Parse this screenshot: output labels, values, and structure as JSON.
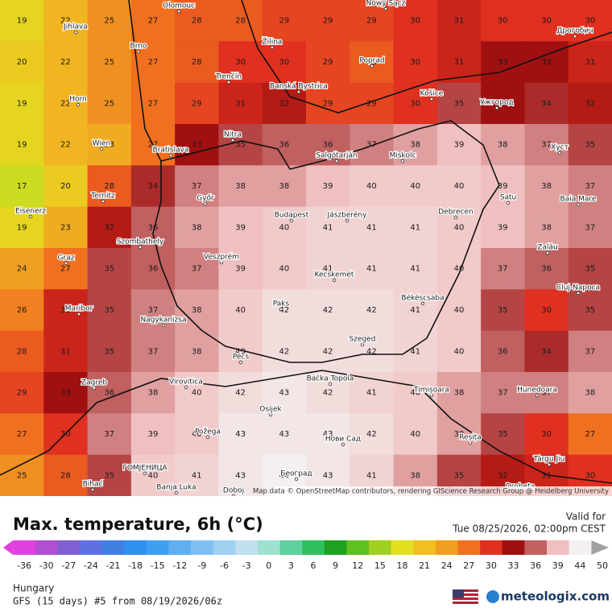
{
  "map": {
    "temperature_grid": [
      [
        19,
        22,
        25,
        27,
        28,
        28,
        29,
        29,
        29,
        30,
        31,
        30,
        30,
        30
      ],
      [
        20,
        22,
        25,
        27,
        28,
        30,
        30,
        29,
        28,
        30,
        31,
        33,
        33,
        31
      ],
      [
        19,
        22,
        25,
        27,
        29,
        31,
        32,
        29,
        29,
        30,
        35,
        33,
        34,
        32
      ],
      [
        19,
        22,
        23,
        27,
        33,
        35,
        36,
        36,
        37,
        38,
        39,
        38,
        37,
        35
      ],
      [
        17,
        20,
        28,
        34,
        37,
        38,
        38,
        39,
        40,
        40,
        40,
        39,
        38,
        37
      ],
      [
        19,
        23,
        32,
        36,
        38,
        39,
        40,
        41,
        41,
        41,
        40,
        39,
        38,
        37
      ],
      [
        24,
        27,
        35,
        36,
        37,
        39,
        40,
        41,
        41,
        41,
        40,
        37,
        36,
        35
      ],
      [
        26,
        31,
        35,
        37,
        38,
        40,
        42,
        42,
        42,
        41,
        40,
        35,
        30,
        35
      ],
      [
        28,
        31,
        35,
        37,
        38,
        40,
        42,
        42,
        42,
        41,
        40,
        36,
        34,
        37
      ],
      [
        29,
        33,
        36,
        38,
        40,
        42,
        43,
        42,
        41,
        40,
        38,
        37,
        37,
        38
      ],
      [
        27,
        30,
        37,
        39,
        40,
        43,
        43,
        43,
        42,
        40,
        38,
        35,
        30,
        27
      ],
      [
        25,
        28,
        35,
        40,
        41,
        43,
        44,
        43,
        41,
        38,
        35,
        32,
        31,
        30
      ]
    ],
    "cities": [
      "Olomouc",
      "Jihlava",
      "Brno",
      "Žilina",
      "Nowy Sącz",
      "Дрогобич",
      "Poprad",
      "Trenčín",
      "Banská Bystrica",
      "Košice",
      "Ужгород",
      "Horn",
      "Nitra",
      "Wien",
      "Bratislava",
      "Salgótarján",
      "Miskolc",
      "Хуст",
      "Ternitz",
      "Győr",
      "Budapest",
      "Jászberény",
      "Debrecen",
      "Satu",
      "Baia Mare",
      "Eisenerz",
      "Szombathely",
      "Veszprém",
      "Graz",
      "Zalău",
      "Kecskemét",
      "Cluj-Napoca",
      "Maribor",
      "Paks",
      "Békéscsaba",
      "Nagykanizsa",
      "Szeged",
      "Pécs",
      "Zagreb",
      "Virovitica",
      "Bačka Topola",
      "Timișoara",
      "Hunedoara",
      "Osijek",
      "Požega",
      "Нови Сад",
      "Reșița",
      "Târgu Jiu",
      "Bihać",
      "ГОМЈЕНИЦА",
      "Banja Luka",
      "Doboj",
      "Београд",
      "Drobeta"
    ],
    "attribution": "Map data © OpenStreetMap contributors, rendering GIScience Research Group @ Heidelberg University"
  },
  "footer": {
    "title": "Max. temperature, 6h (°C)",
    "valid_label": "Valid for",
    "valid_time": "Tue 08/25/2026, 02:00pm CEST",
    "region": "Hungary",
    "model": "GFS (15 days) #5 from  08/19/2026/06z",
    "brand": "meteologix.com"
  },
  "legend": {
    "ticks": [
      -36,
      -30,
      -27,
      -24,
      -21,
      -18,
      -15,
      -12,
      -9,
      -6,
      -3,
      0,
      3,
      6,
      9,
      12,
      15,
      18,
      21,
      24,
      27,
      30,
      33,
      36,
      39,
      44,
      50
    ],
    "colors": [
      "#e040e0",
      "#b050d0",
      "#8060d0",
      "#6070e0",
      "#4080e0",
      "#3090f0",
      "#40a0f0",
      "#60b0f0",
      "#80c0f0",
      "#a0d0f0",
      "#c0e0f0",
      "#a0e0d0",
      "#60d0a0",
      "#30c060",
      "#20a020",
      "#60c020",
      "#a0d020",
      "#e0e020",
      "#f0c020",
      "#f0a020",
      "#f07020",
      "#e03020",
      "#a01010",
      "#c06060",
      "#f0c0c0",
      "#f4f0f0",
      "#a0a0a0"
    ]
  }
}
